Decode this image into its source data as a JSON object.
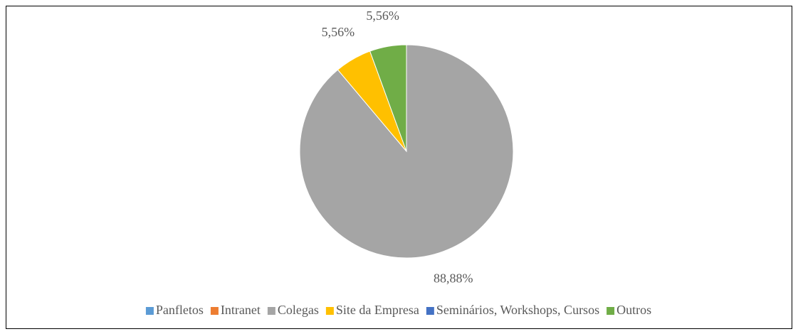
{
  "chart_data": {
    "type": "pie",
    "categories": [
      "Panfletos",
      "Intranet",
      "Colegas",
      "Site da Empresa",
      "Seminários, Workshops, Cursos",
      "Outros"
    ],
    "values": [
      0,
      0,
      88.88,
      5.56,
      0,
      5.56
    ],
    "value_labels": [
      null,
      null,
      "88,88%",
      "5,56%",
      null,
      "5,56%"
    ],
    "colors": [
      "#5b9bd5",
      "#ed7d31",
      "#a5a5a5",
      "#ffc000",
      "#4472c4",
      "#70ad47"
    ],
    "legend": "bottom"
  }
}
